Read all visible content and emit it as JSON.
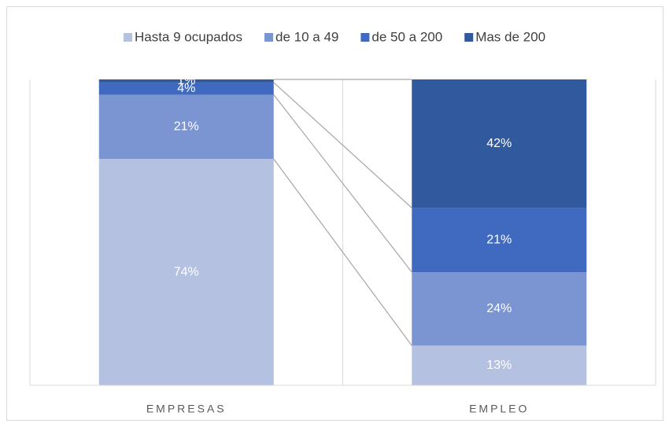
{
  "chart_data": {
    "type": "stacked_bar",
    "categories": [
      "EMPRESAS",
      "EMPLEO"
    ],
    "series": [
      {
        "name": "Hasta 9 ocupados",
        "color": "#b4c1e1",
        "values": [
          74,
          13
        ],
        "value_labels": [
          "74%",
          "13%"
        ]
      },
      {
        "name": "de 10 a 49",
        "color": "#7b94d2",
        "values": [
          21,
          24
        ],
        "value_labels": [
          "21%",
          "24%"
        ]
      },
      {
        "name": "de 50 a 200",
        "color": "#3f6ac0",
        "values": [
          4,
          21
        ],
        "value_labels": [
          "4%",
          "21%"
        ]
      },
      {
        "name": "Mas de 200",
        "color": "#31599d",
        "values": [
          1,
          42
        ],
        "value_labels": [
          "1%",
          "42%"
        ]
      }
    ],
    "ylim": [
      0,
      100
    ],
    "legend": "top"
  }
}
